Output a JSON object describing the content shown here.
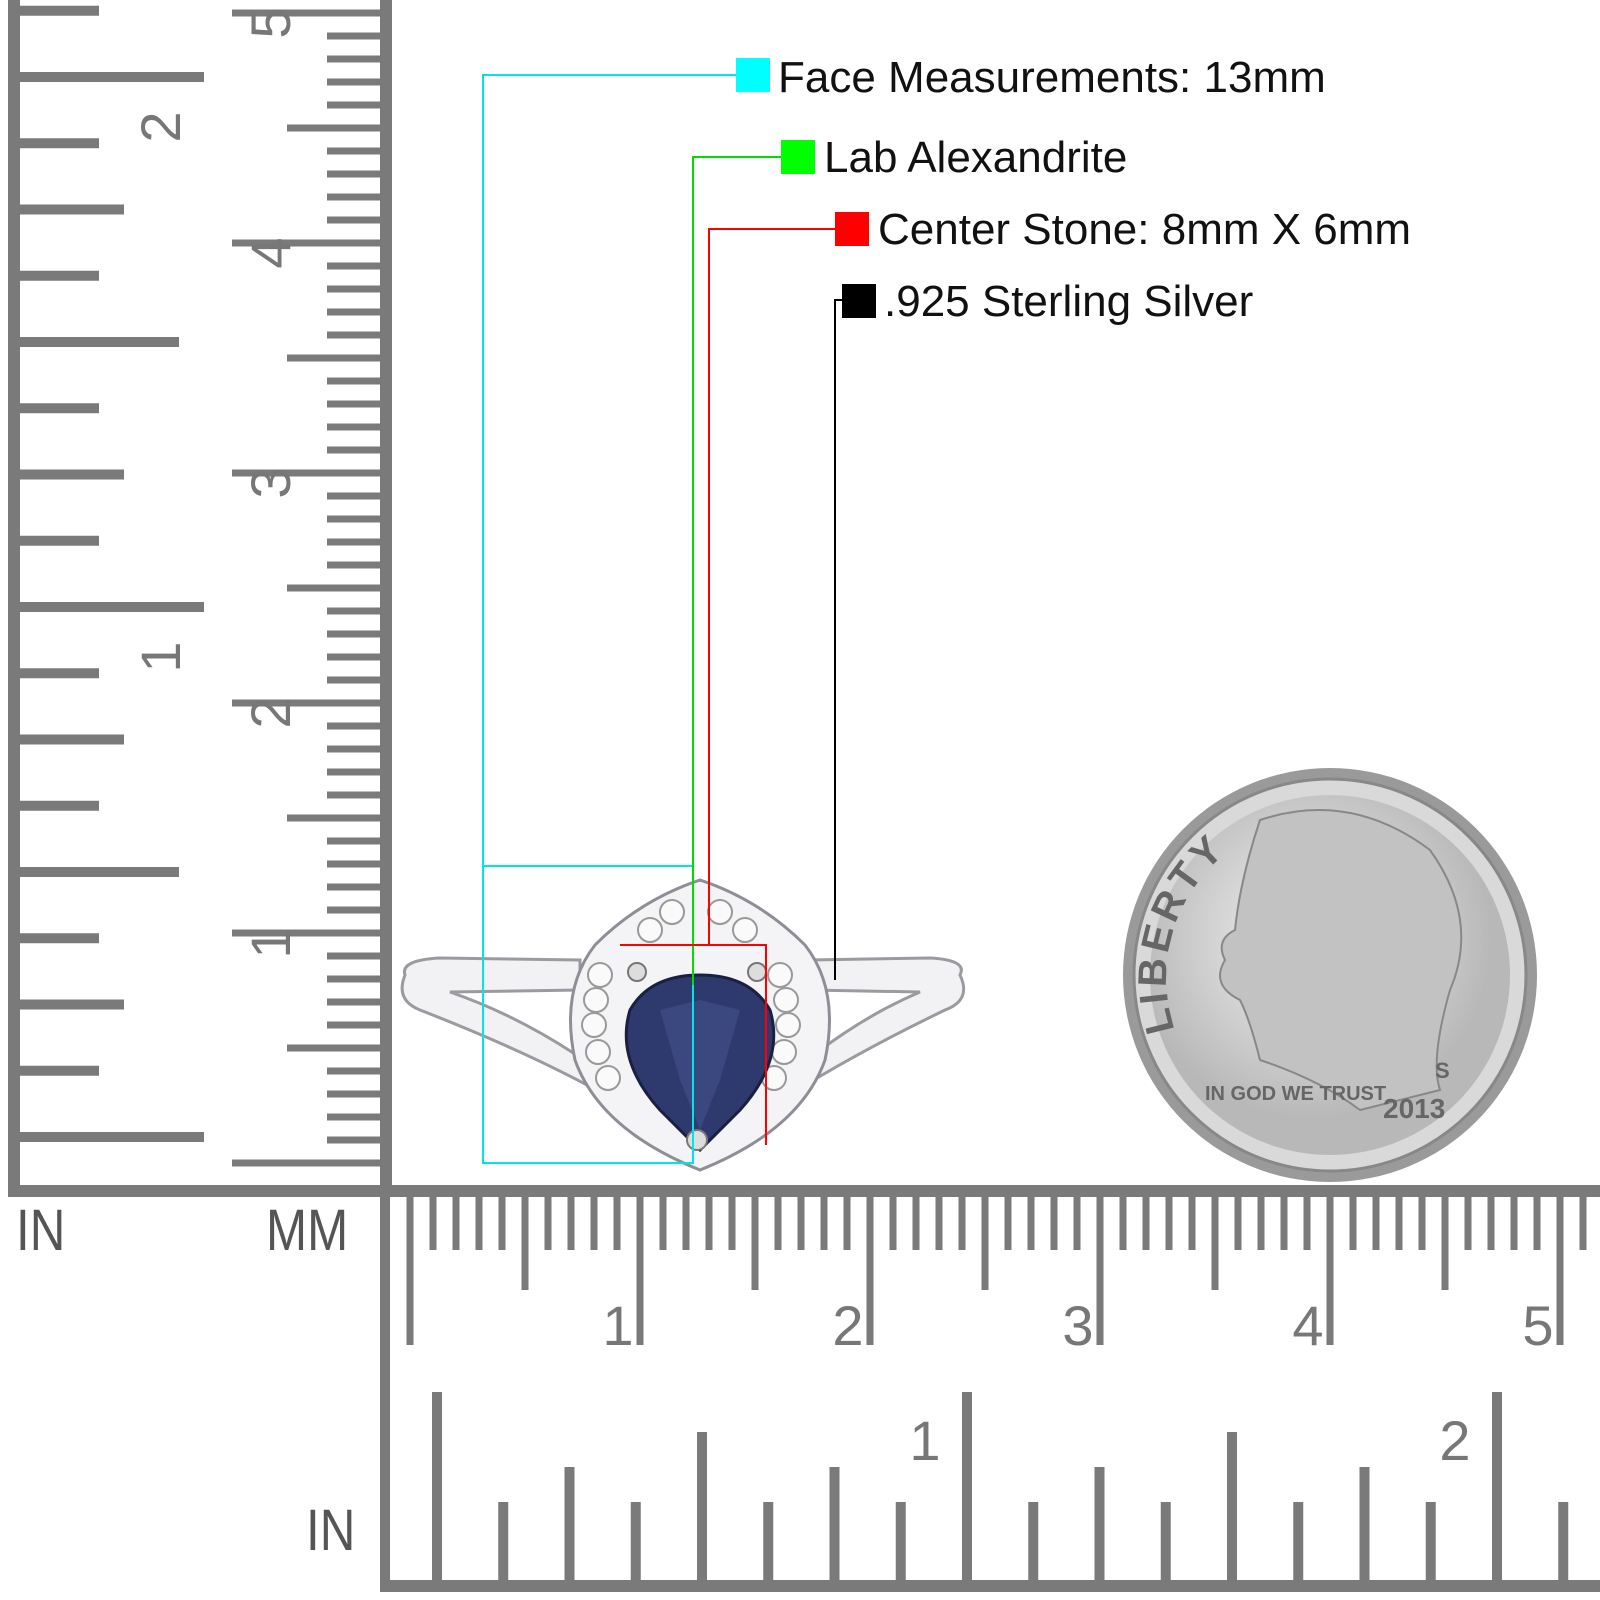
{
  "specs": [
    {
      "label": "Face Measurements: 13mm",
      "color": "#00ffff"
    },
    {
      "label": "Lab Alexandrite",
      "color": "#00ff00"
    },
    {
      "label": "Center Stone: 8mm X 6mm",
      "color": "#ff0000"
    },
    {
      "label": ".925 Sterling Silver",
      "color": "#000000"
    }
  ],
  "ruler": {
    "unit_in_left": "IN",
    "unit_mm": "MM",
    "unit_in_bottom": "IN",
    "cm_labels": [
      "1",
      "2",
      "3",
      "4",
      "5"
    ],
    "in_labels": [
      "1",
      "2"
    ],
    "tick_color": "#7a7a7a"
  },
  "coin": {
    "motto_top": "LIBERTY",
    "motto_bottom": "IN GOD WE TRUST",
    "year": "2013",
    "mint_mark": "S"
  },
  "stone_color": "#2e3a6e"
}
